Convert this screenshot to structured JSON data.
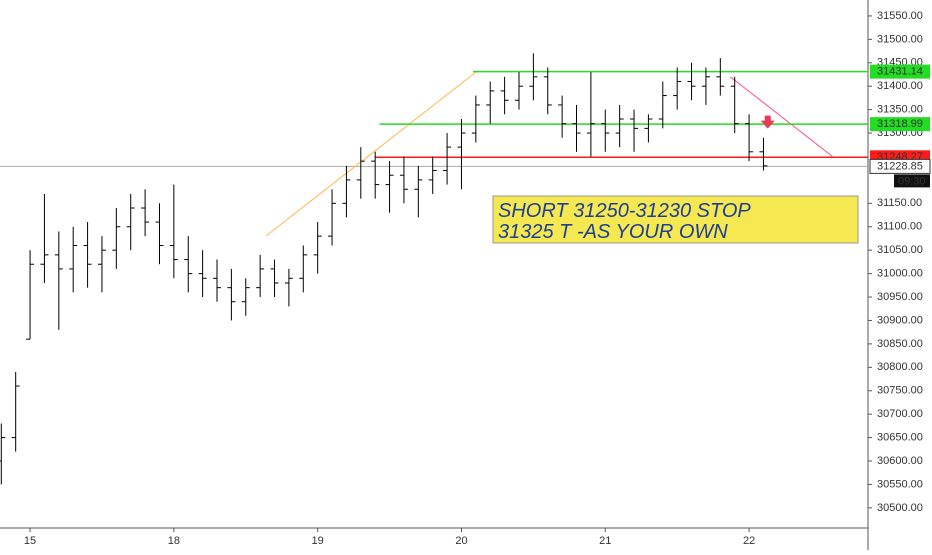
{
  "chart_data": {
    "type": "ohlc",
    "color": "#000000",
    "x": [
      -0.2,
      -0.1,
      0.0,
      0.1,
      0.2,
      0.3,
      0.4,
      0.5,
      0.6,
      0.7,
      0.8,
      0.9,
      1.0,
      1.1,
      1.2,
      1.3,
      1.4,
      1.5,
      1.6,
      1.7,
      1.8,
      1.9,
      2.0,
      2.1,
      2.2,
      2.3,
      2.4,
      2.5,
      2.6,
      2.7,
      2.8,
      2.9,
      3.0,
      3.1,
      3.2,
      3.3,
      3.4,
      3.5,
      3.6,
      3.7,
      3.8,
      3.9,
      4.0,
      4.1,
      4.2,
      4.3,
      4.4,
      4.5,
      4.6,
      4.7,
      4.8,
      4.9,
      5.0,
      5.1
    ],
    "open": [
      30600,
      30650,
      30860,
      31020,
      31040,
      31010,
      31060,
      31020,
      31050,
      31100,
      31140,
      31110,
      31060,
      31030,
      31000,
      30990,
      30970,
      30940,
      30970,
      31010,
      30980,
      30990,
      31040,
      31080,
      31150,
      31200,
      31240,
      31190,
      31210,
      31180,
      31200,
      31220,
      31270,
      31300,
      31360,
      31390,
      31370,
      31400,
      31420,
      31360,
      31320,
      31300,
      31320,
      31300,
      31330,
      31310,
      31330,
      31380,
      31410,
      31400,
      31420,
      31400,
      31320,
      31260
    ],
    "high": [
      30680,
      30790,
      31050,
      31170,
      31090,
      31100,
      31110,
      31080,
      31140,
      31170,
      31180,
      31150,
      31190,
      31080,
      31050,
      31030,
      31010,
      30990,
      31040,
      31030,
      31010,
      31060,
      31110,
      31180,
      31230,
      31270,
      31260,
      31240,
      31250,
      31230,
      31250,
      31300,
      31330,
      31380,
      31410,
      31420,
      31430,
      31470,
      31440,
      31380,
      31360,
      31430,
      31350,
      31360,
      31350,
      31340,
      31410,
      31440,
      31450,
      31440,
      31460,
      31420,
      31340,
      31290
    ],
    "low": [
      30550,
      30620,
      30860,
      30980,
      30880,
      30960,
      30970,
      30960,
      31010,
      31050,
      31080,
      31020,
      30990,
      30960,
      30950,
      30940,
      30900,
      30910,
      30950,
      30950,
      30930,
      30960,
      31000,
      31060,
      31120,
      31160,
      31160,
      31130,
      31150,
      31120,
      31170,
      31190,
      31180,
      31280,
      31320,
      31340,
      31350,
      31370,
      31340,
      31290,
      31260,
      31250,
      31260,
      31270,
      31260,
      31280,
      31310,
      31350,
      31370,
      31360,
      31380,
      31300,
      31240,
      31220
    ],
    "close": [
      30650,
      30760,
      31020,
      31040,
      31010,
      31060,
      31020,
      31050,
      31100,
      31140,
      31110,
      31060,
      31030,
      31000,
      30990,
      30970,
      30940,
      30970,
      31010,
      30980,
      30990,
      31040,
      31080,
      31150,
      31200,
      31240,
      31190,
      31210,
      31180,
      31200,
      31220,
      31270,
      31300,
      31360,
      31390,
      31370,
      31400,
      31420,
      31360,
      31320,
      31300,
      31320,
      31300,
      31330,
      31310,
      31330,
      31380,
      31410,
      31400,
      31420,
      31400,
      31320,
      31260,
      31230
    ],
    "xlim": [
      -0.209,
      5.827
    ],
    "ylim": [
      30457,
      31584
    ],
    "xticks": [
      {
        "value": 0,
        "label": "15"
      },
      {
        "value": 1,
        "label": "18"
      },
      {
        "value": 2,
        "label": "19"
      },
      {
        "value": 3,
        "label": "20"
      },
      {
        "value": 4,
        "label": "21"
      },
      {
        "value": 5,
        "label": "22"
      }
    ],
    "yticks": [
      {
        "value": 30500,
        "label": "30500.00"
      },
      {
        "value": 30550,
        "label": "30550.00"
      },
      {
        "value": 30600,
        "label": "30600.00"
      },
      {
        "value": 30650,
        "label": "30650.00"
      },
      {
        "value": 30700,
        "label": "30700.00"
      },
      {
        "value": 30750,
        "label": "30750.00"
      },
      {
        "value": 30800,
        "label": "30800.00"
      },
      {
        "value": 30850,
        "label": "30850.00"
      },
      {
        "value": 30900,
        "label": "30900.00"
      },
      {
        "value": 30950,
        "label": "30950.00"
      },
      {
        "value": 31000,
        "label": "31000.00"
      },
      {
        "value": 31050,
        "label": "31050.00"
      },
      {
        "value": 31100,
        "label": "31100.00"
      },
      {
        "value": 31150,
        "label": "31150.00"
      },
      {
        "value": 31300,
        "label": "31300.00"
      },
      {
        "value": 31350,
        "label": "31350.00"
      },
      {
        "value": 31400,
        "label": "31400.00"
      },
      {
        "value": 31450,
        "label": "31450.00"
      },
      {
        "value": 31500,
        "label": "31500.00"
      },
      {
        "value": 31550,
        "label": "31550.00"
      }
    ],
    "levels": [
      {
        "value": 31431.14,
        "color": "#22dd22",
        "start": 3.08
      },
      {
        "value": 31318.99,
        "color": "#22dd22",
        "start": 2.43
      },
      {
        "value": 31248.27,
        "color": "#ff1a1a",
        "start": 2.4
      }
    ],
    "current_price": 31228.85,
    "countdown": "09:30",
    "trendlines": [
      {
        "x": [
          1.64,
          3.1
        ],
        "y": [
          31080,
          31430
        ],
        "color": "#ffb84d"
      },
      {
        "x": [
          4.87,
          5.58
        ],
        "y": [
          31420,
          31250
        ],
        "color": "#ff4d88"
      }
    ],
    "arrow": {
      "x": 5.13,
      "y": 31320,
      "color": "#e83a5a"
    },
    "annotation": [
      "SHORT 31250-31230 STOP",
      "31325 T -AS YOUR OWN"
    ]
  }
}
